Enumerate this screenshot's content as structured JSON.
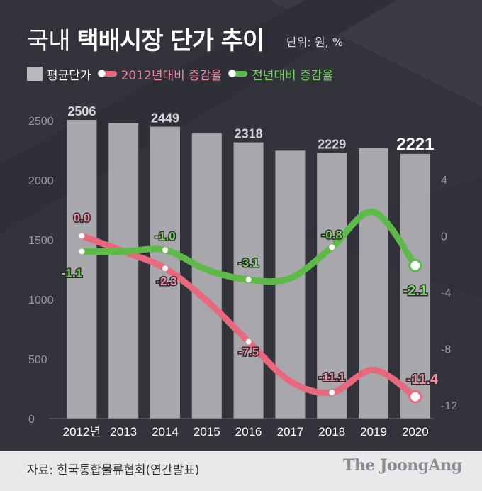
{
  "header": {
    "title_prefix": "국내 ",
    "title_bold": "택배시장 단가 추이",
    "unit": "단위: 원, %"
  },
  "legend": {
    "bar": "평균단가",
    "line_2012": "2012년대비 증감율",
    "line_yoy": "전년대비 증감율"
  },
  "footer": {
    "source": "자료: 한국통합물류협회(연간발표)",
    "brand": "The JoongAng"
  },
  "colors": {
    "bar": "#a7a7ac",
    "pink": "#e8697e",
    "green": "#5dba48",
    "background_dark": "#33333b"
  },
  "chart_data": {
    "type": "bar",
    "categories": [
      "2012년",
      "2013",
      "2014",
      "2015",
      "2016",
      "2017",
      "2018",
      "2019",
      "2020"
    ],
    "series": [
      {
        "name": "평균단가",
        "type": "bar",
        "axis": "left",
        "values": [
          2506,
          2478,
          2449,
          2392,
          2318,
          2248,
          2229,
          2269,
          2221
        ]
      },
      {
        "name": "2012년대비 증감율",
        "type": "line",
        "axis": "right",
        "values": [
          0.0,
          -1.1,
          -2.3,
          -4.6,
          -7.5,
          -10.3,
          -11.1,
          -9.5,
          -11.4
        ]
      },
      {
        "name": "전년대비 증감율",
        "type": "line",
        "axis": "right",
        "values": [
          -1.1,
          -1.1,
          -1.0,
          -2.4,
          -3.1,
          -3.0,
          -0.8,
          1.7,
          -2.1
        ]
      }
    ],
    "bar_labels": [
      {
        "index": 0,
        "text": "2506"
      },
      {
        "index": 2,
        "text": "2449"
      },
      {
        "index": 4,
        "text": "2318"
      },
      {
        "index": 6,
        "text": "2229"
      },
      {
        "index": 8,
        "text": "2221"
      }
    ],
    "pink_labels": [
      {
        "index": 0,
        "text": "0.0"
      },
      {
        "index": 2,
        "text": "-2.3"
      },
      {
        "index": 4,
        "text": "-7.5"
      },
      {
        "index": 6,
        "text": "-11.1"
      },
      {
        "index": 8,
        "text": "-11.4"
      }
    ],
    "green_labels": [
      {
        "index": 0,
        "text": "-1.1"
      },
      {
        "index": 2,
        "text": "-1.0"
      },
      {
        "index": 4,
        "text": "-3.1"
      },
      {
        "index": 6,
        "text": "-0.8"
      },
      {
        "index": 8,
        "text": "-2.1"
      }
    ],
    "left_axis": {
      "ylim": [
        0,
        2500
      ],
      "ticks": [
        "0",
        "500",
        "1000",
        "1500",
        "2000",
        "2500"
      ]
    },
    "right_axis": {
      "ylim": [
        -12,
        4
      ],
      "ticks": [
        "4",
        "0",
        "-4",
        "-8",
        "-12"
      ]
    }
  }
}
